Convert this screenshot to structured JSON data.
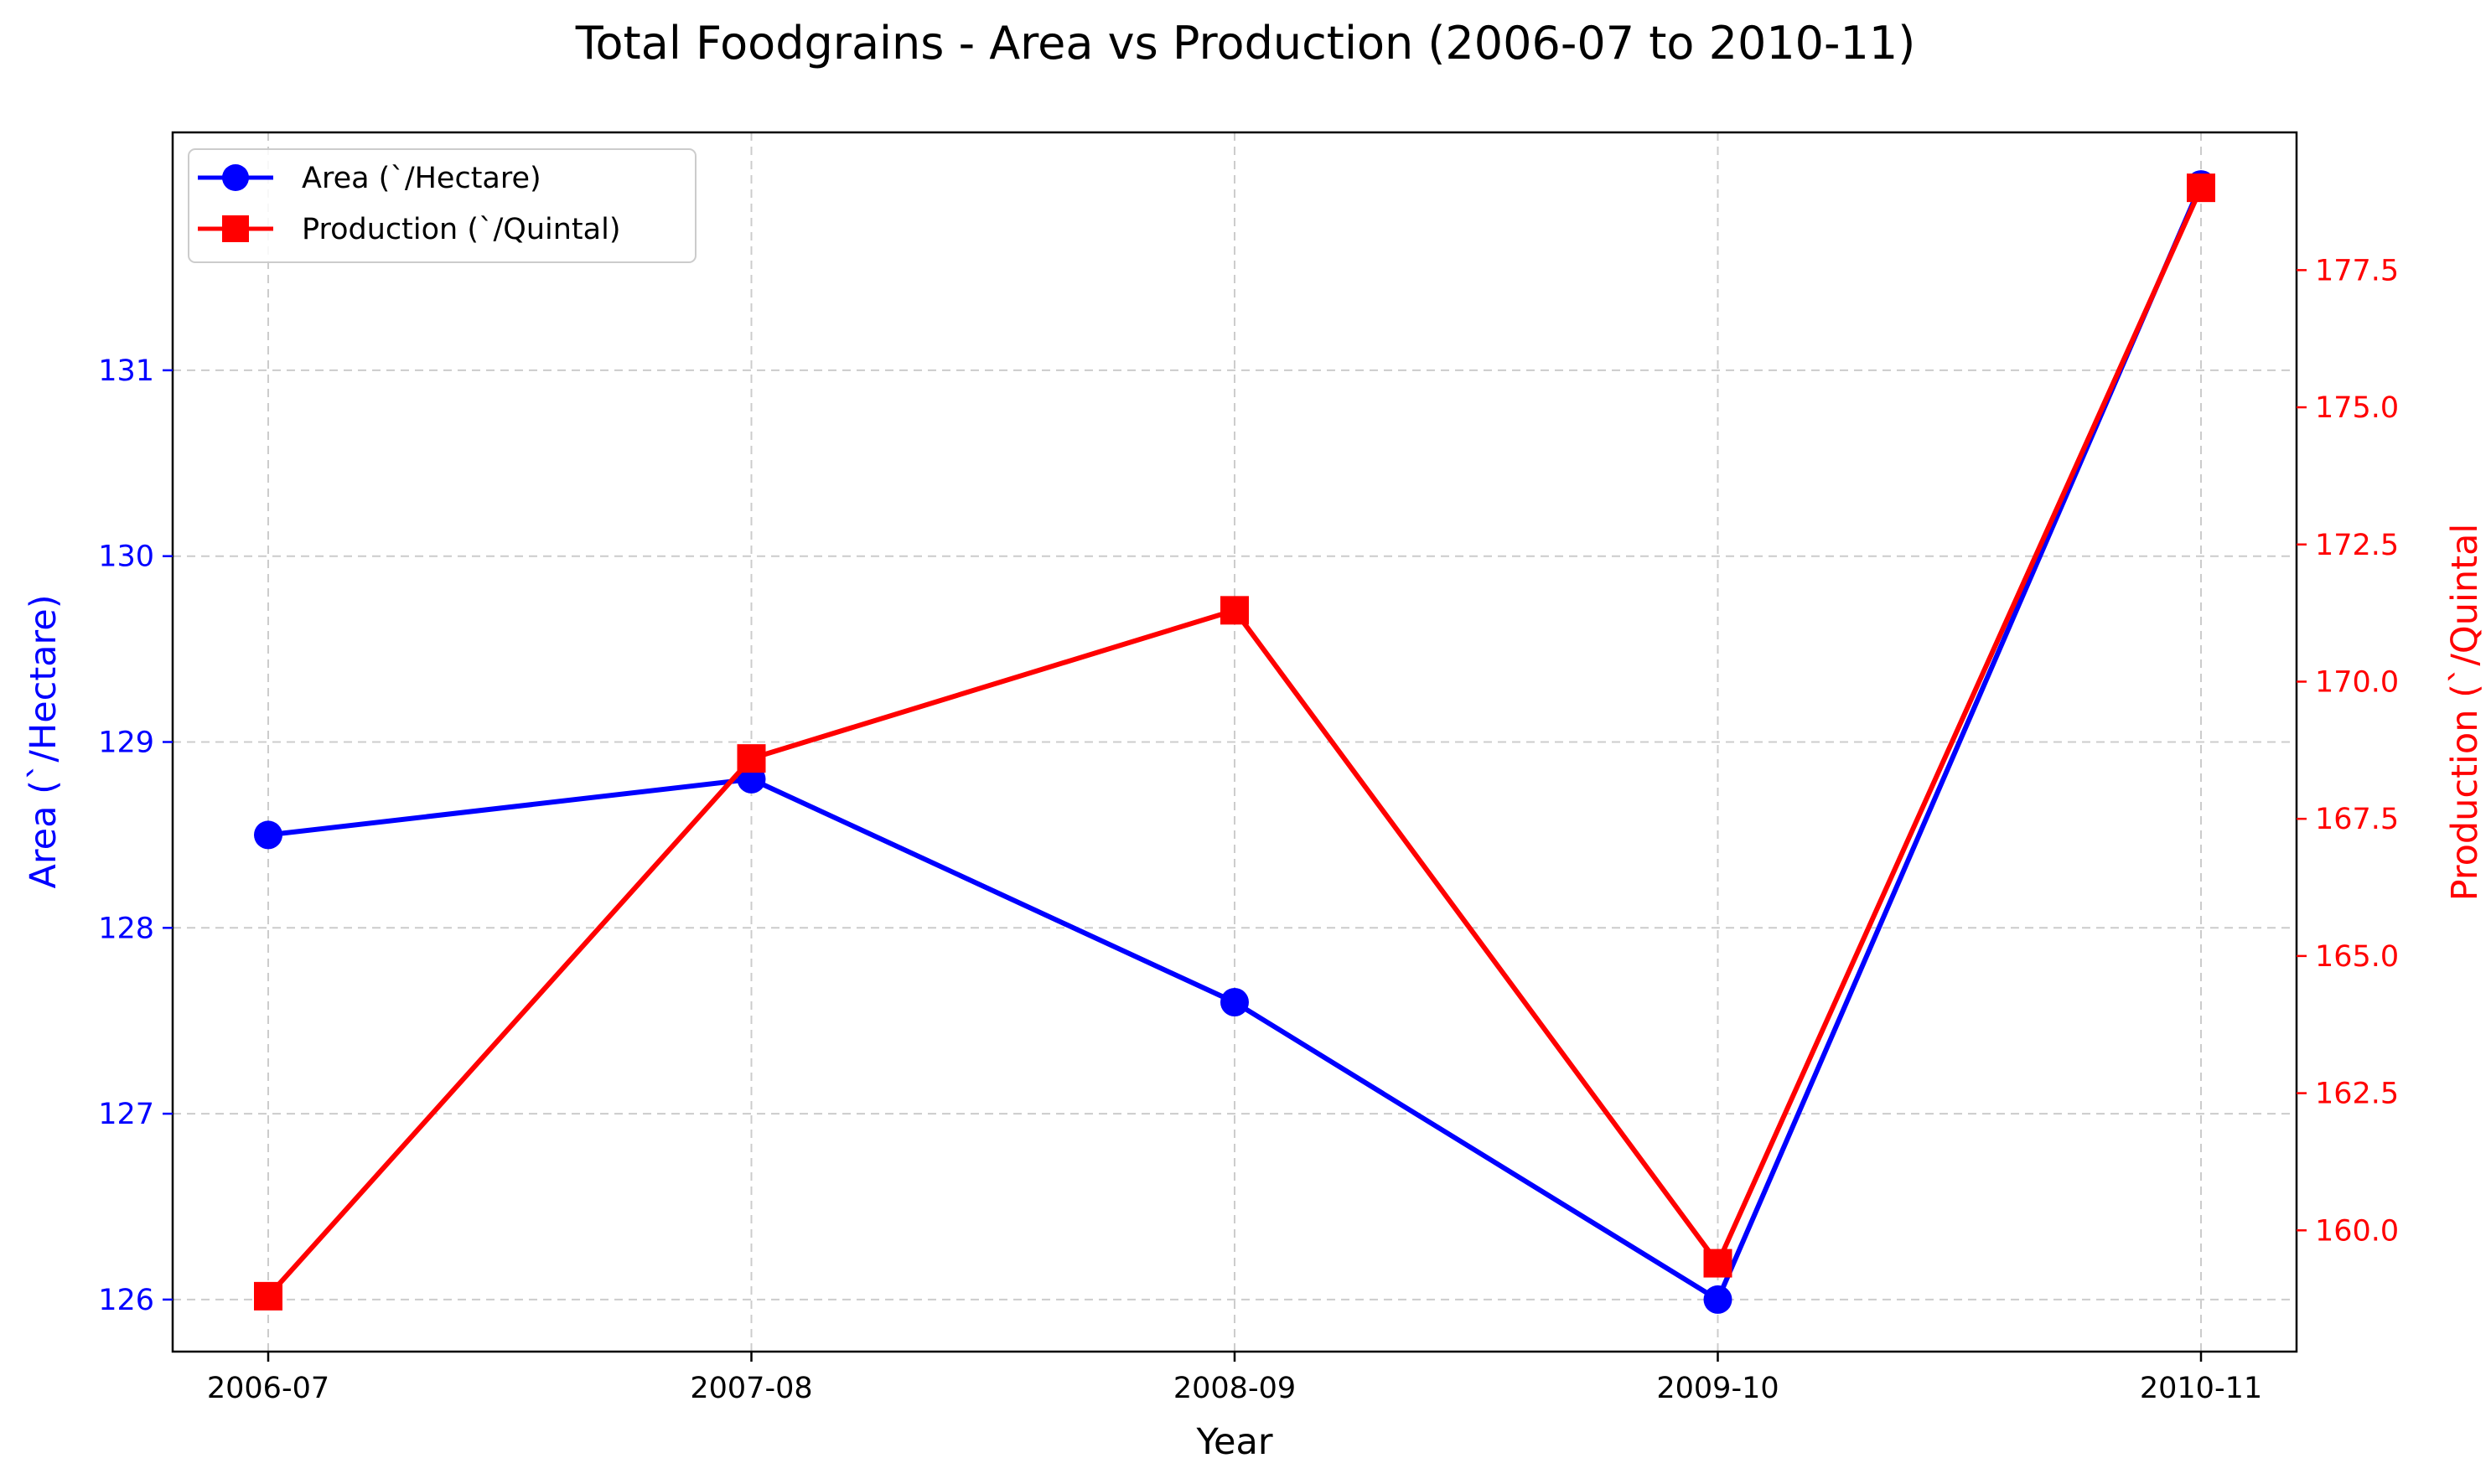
{
  "chart_data": {
    "type": "line",
    "title": "Total Foodgrains - Area vs Production (2006-07 to 2010-11)",
    "xlabel": "Year",
    "categories": [
      "2006-07",
      "2007-08",
      "2008-09",
      "2009-10",
      "2010-11"
    ],
    "grid": true,
    "legend_position": "top-left",
    "series": [
      {
        "name": "Area (`/Hectare)",
        "axis": "left",
        "color": "#0000ff",
        "marker": "circle",
        "values": [
          128.5,
          128.8,
          127.6,
          126.0,
          132.0
        ]
      },
      {
        "name": "Production (`/Quintal)",
        "axis": "right",
        "color": "#ff0000",
        "marker": "square",
        "values": [
          158.8,
          168.6,
          171.3,
          159.4,
          179.0
        ]
      }
    ],
    "y_left": {
      "label": "Area (`/Hectare)",
      "color": "#0000ff",
      "range": [
        125.72,
        132.28
      ],
      "ticks": [
        126,
        127,
        128,
        129,
        130,
        131
      ],
      "tick_labels": [
        "126",
        "127",
        "128",
        "129",
        "130",
        "131"
      ]
    },
    "y_right": {
      "label": "Production (`/Quintal",
      "color": "#ff0000",
      "range": [
        157.79,
        180.01
      ],
      "ticks": [
        160.0,
        162.5,
        165.0,
        167.5,
        170.0,
        172.5,
        175.0,
        177.5
      ],
      "tick_labels": [
        "160.0",
        "162.5",
        "165.0",
        "167.5",
        "170.0",
        "172.5",
        "175.0",
        "177.5"
      ]
    }
  }
}
